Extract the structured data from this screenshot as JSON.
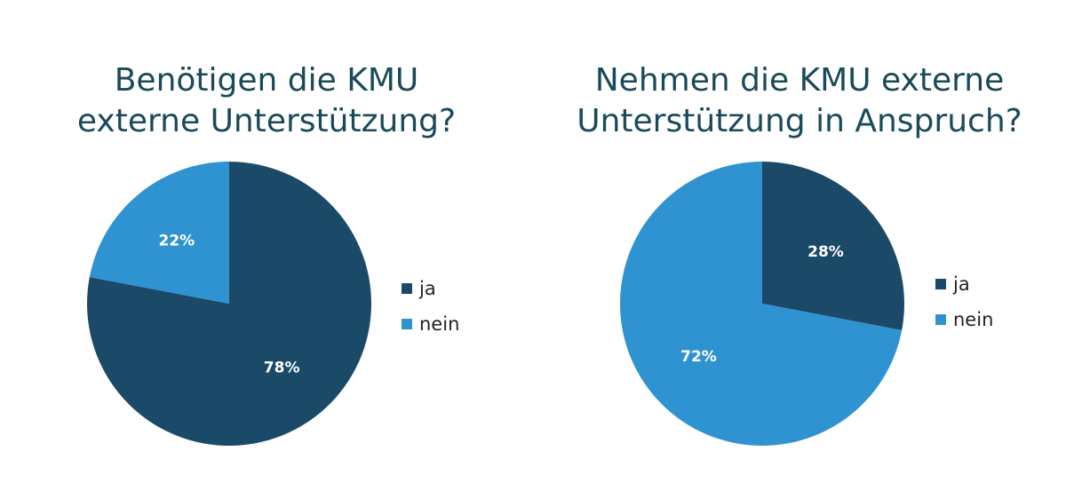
{
  "colors": {
    "ja": "#1b4a68",
    "nein": "#2f93d1",
    "title": "#1a4a5a",
    "label": "#ffffff"
  },
  "chart_data": [
    {
      "type": "pie",
      "title": [
        "Benötigen die KMU",
        "externe Unterstützung?"
      ],
      "categories": [
        "ja",
        "nein"
      ],
      "values": [
        78,
        22
      ],
      "labels": [
        "78%",
        "22%"
      ],
      "legend": "right"
    },
    {
      "type": "pie",
      "title": [
        "Nehmen die KMU externe",
        "Unterstützung in Anspruch?"
      ],
      "categories": [
        "ja",
        "nein"
      ],
      "values": [
        28,
        72
      ],
      "labels": [
        "28%",
        "72%"
      ],
      "legend": "right"
    }
  ]
}
